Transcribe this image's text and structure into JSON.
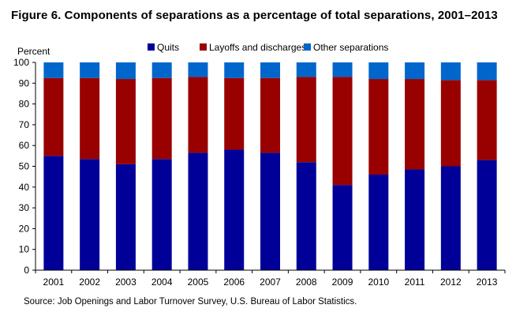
{
  "figure": {
    "title": "Figure 6. Components of separations as a percentage of total separations, 2001–2013",
    "source": "Source: Job Openings and Labor Turnover Survey, U.S. Bureau of Labor Statistics."
  },
  "chart_data": {
    "type": "bar",
    "stacked": true,
    "ylabel": "Percent",
    "xlabel": "",
    "ylim": [
      0,
      100
    ],
    "yticks": [
      0,
      10,
      20,
      30,
      40,
      50,
      60,
      70,
      80,
      90,
      100
    ],
    "grid": false,
    "legend_position": "top-center",
    "categories": [
      "2001",
      "2002",
      "2003",
      "2004",
      "2005",
      "2006",
      "2007",
      "2008",
      "2009",
      "2010",
      "2011",
      "2012",
      "2013"
    ],
    "series": [
      {
        "name": "Quits",
        "color": "#000099",
        "values": [
          55,
          53.5,
          51,
          53.5,
          56.5,
          58,
          56.5,
          52,
          41,
          46,
          48.5,
          50,
          53
        ]
      },
      {
        "name": "Layoffs and discharges",
        "color": "#990000",
        "values": [
          37.5,
          39,
          41,
          39,
          36.5,
          34.5,
          36,
          41,
          52,
          46,
          43.5,
          41.5,
          38.5
        ]
      },
      {
        "name": "Other separations",
        "color": "#0066cc",
        "values": [
          7.5,
          7.5,
          8,
          7.5,
          7,
          7.5,
          7.5,
          7,
          7,
          8,
          8,
          8.5,
          8.5
        ]
      }
    ]
  }
}
